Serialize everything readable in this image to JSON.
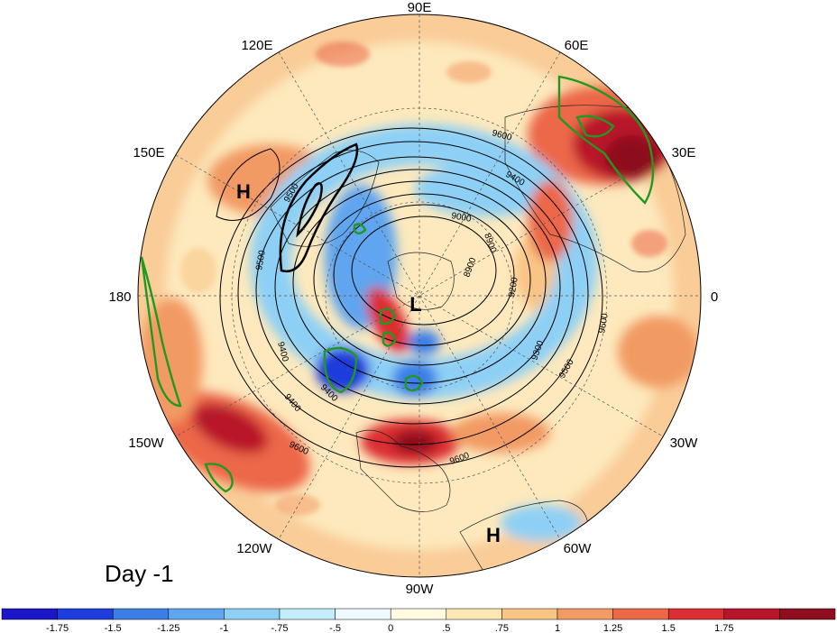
{
  "panel_label": "Day -1",
  "longitude_labels": [
    {
      "text": "90E"
    },
    {
      "text": "60E"
    },
    {
      "text": "30E"
    },
    {
      "text": "0"
    },
    {
      "text": "30W"
    },
    {
      "text": "60W"
    },
    {
      "text": "90W"
    },
    {
      "text": "120W"
    },
    {
      "text": "150W"
    },
    {
      "text": "180"
    },
    {
      "text": "150E"
    },
    {
      "text": "120E"
    }
  ],
  "pressure_centers": [
    {
      "text": "H",
      "region": "North Pacific / Siberia"
    },
    {
      "text": "L",
      "region": "Arctic"
    },
    {
      "text": "H",
      "region": "Caribbean"
    }
  ],
  "contour_labels": [
    "9600",
    "9500",
    "9400",
    "9000",
    "8900",
    "9200",
    "9300",
    "9400",
    "9500",
    "9600",
    "9500",
    "9400",
    "9600",
    "9600",
    "9400",
    "8900"
  ],
  "colorbar": {
    "colors": [
      "#1b16c8",
      "#1f3ddc",
      "#3a7ee6",
      "#5fa5ef",
      "#8ed0f5",
      "#c4ecfb",
      "#eefaff",
      "#fffbe0",
      "#fde7b2",
      "#f9c585",
      "#f29a63",
      "#ec6848",
      "#dc2f33",
      "#b9152a",
      "#8e0d1f"
    ],
    "tick_labels": [
      "-1.75",
      "-1.5",
      "-1.25",
      "-1",
      "-.75",
      "-.5",
      "0",
      ".5",
      ".75",
      "1",
      "1.25",
      "1.5",
      "1.75"
    ]
  }
}
